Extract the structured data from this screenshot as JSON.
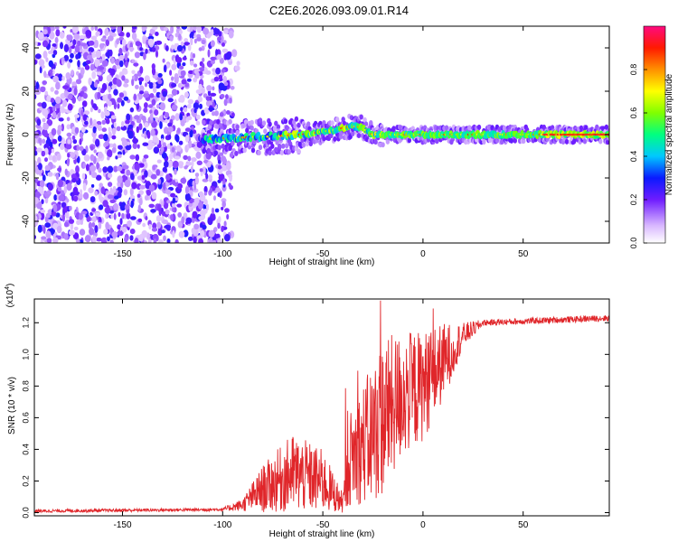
{
  "title": "C2E6.2026.093.09.01.R14",
  "chart_data": [
    {
      "type": "heatmap",
      "name": "spectrogram",
      "xlabel": "Height of straight line (km)",
      "ylabel": "Frequency (Hz)",
      "xlim": [
        -194,
        93
      ],
      "ylim": [
        -50,
        50
      ],
      "xticks": [
        -150,
        -100,
        -50,
        0,
        50
      ],
      "yticks": [
        -40,
        -20,
        0,
        20,
        40
      ],
      "colorbar": {
        "label": "Normalized spectral amplitude",
        "range": [
          0,
          1
        ],
        "ticks": [
          "0.0",
          "0.2",
          "0.4",
          "0.6",
          "0.8"
        ],
        "tick_values": [
          0,
          0.2,
          0.4,
          0.6,
          0.8
        ]
      },
      "features": {
        "noise_region_x": [
          -194,
          -100
        ],
        "signal_onset_x": -110,
        "signal_center_freq": 0,
        "ridge": [
          {
            "x": -110,
            "y": -2
          },
          {
            "x": -80,
            "y": -1
          },
          {
            "x": -60,
            "y": 0
          },
          {
            "x": -45,
            "y": 2
          },
          {
            "x": -35,
            "y": 4
          },
          {
            "x": -30,
            "y": 3
          },
          {
            "x": -25,
            "y": 0
          },
          {
            "x": 0,
            "y": 0
          },
          {
            "x": 93,
            "y": 0
          }
        ],
        "high_amplitude_start_x": 60
      }
    },
    {
      "type": "line",
      "name": "snr",
      "xlabel": "Height of straight line (km)",
      "ylabel": "SNR (10 * v/v)",
      "yscale_label": "(x10",
      "yscale_exp": "4",
      "xlim": [
        -194,
        93
      ],
      "ylim": [
        -0.02,
        1.35
      ],
      "xticks": [
        -150,
        -100,
        -50,
        0,
        50
      ],
      "yticks": [
        "0.0",
        "0.2",
        "0.4",
        "0.6",
        "0.8",
        "1.0",
        "1.2"
      ],
      "ytick_values": [
        0,
        0.2,
        0.4,
        0.6,
        0.8,
        1.0,
        1.2
      ],
      "color": "#e0262a",
      "envelope": [
        {
          "x": -194,
          "base": 0.01,
          "amp": 0.01
        },
        {
          "x": -100,
          "base": 0.02,
          "amp": 0.01
        },
        {
          "x": -90,
          "base": 0.05,
          "amp": 0.04
        },
        {
          "x": -80,
          "base": 0.15,
          "amp": 0.15
        },
        {
          "x": -65,
          "base": 0.25,
          "amp": 0.25
        },
        {
          "x": -50,
          "base": 0.2,
          "amp": 0.2
        },
        {
          "x": -40,
          "base": 0.06,
          "amp": 0.06
        },
        {
          "x": -36,
          "base": 0.35,
          "amp": 0.3
        },
        {
          "x": -25,
          "base": 0.5,
          "amp": 0.45
        },
        {
          "x": -20,
          "base": 0.6,
          "amp": 0.5
        },
        {
          "x": -10,
          "base": 0.75,
          "amp": 0.4
        },
        {
          "x": 0,
          "base": 0.8,
          "amp": 0.35
        },
        {
          "x": 10,
          "base": 0.95,
          "amp": 0.25
        },
        {
          "x": 20,
          "base": 1.12,
          "amp": 0.08
        },
        {
          "x": 30,
          "base": 1.2,
          "amp": 0.02
        },
        {
          "x": 93,
          "base": 1.23,
          "amp": 0.02
        }
      ]
    }
  ]
}
